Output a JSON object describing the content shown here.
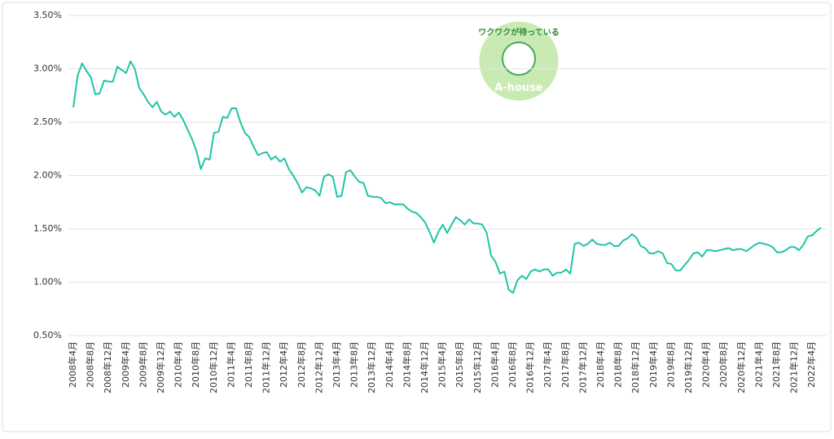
{
  "chart_data": {
    "type": "line",
    "categories": [
      "2008年4月",
      null,
      null,
      null,
      "2008年8月",
      null,
      null,
      null,
      "2008年12月",
      null,
      null,
      null,
      "2009年4月",
      null,
      null,
      null,
      "2009年8月",
      null,
      null,
      null,
      "2009年12月",
      null,
      null,
      null,
      "2010年4月",
      null,
      null,
      null,
      "2010年8月",
      null,
      null,
      null,
      "2010年12月",
      null,
      null,
      null,
      "2011年4月",
      null,
      null,
      null,
      "2011年8月",
      null,
      null,
      null,
      "2011年12月",
      null,
      null,
      null,
      "2012年4月",
      null,
      null,
      null,
      "2012年8月",
      null,
      null,
      null,
      "2012年12月",
      null,
      null,
      null,
      "2013年4月",
      null,
      null,
      null,
      "2013年8月",
      null,
      null,
      null,
      "2013年12月",
      null,
      null,
      null,
      "2014年4月",
      null,
      null,
      null,
      "2014年8月",
      null,
      null,
      null,
      "2014年12月",
      null,
      null,
      null,
      "2015年4月",
      null,
      null,
      null,
      "2015年8月",
      null,
      null,
      null,
      "2015年12月",
      null,
      null,
      null,
      "2016年4月",
      null,
      null,
      null,
      "2016年8月",
      null,
      null,
      null,
      "2016年12月",
      null,
      null,
      null,
      "2017年4月",
      null,
      null,
      null,
      "2017年8月",
      null,
      null,
      null,
      "2017年12月",
      null,
      null,
      null,
      "2018年4月",
      null,
      null,
      null,
      "2018年8月",
      null,
      null,
      null,
      "2018年12月",
      null,
      null,
      null,
      "2019年4月",
      null,
      null,
      null,
      "2019年8月",
      null,
      null,
      null,
      "2019年12月",
      null,
      null,
      null,
      "2020年4月",
      null,
      null,
      null,
      "2020年8月",
      null,
      null,
      null,
      "2020年12月",
      null,
      null,
      null,
      "2021年4月",
      null,
      null,
      null,
      "2021年8月",
      null,
      null,
      null,
      "2021年12月",
      null,
      null,
      null,
      "2022年4月",
      null,
      null
    ],
    "values": [
      2.64,
      2.94,
      3.05,
      2.98,
      2.92,
      2.76,
      2.77,
      2.89,
      2.88,
      2.88,
      3.02,
      2.99,
      2.96,
      3.07,
      3.0,
      2.82,
      2.76,
      2.69,
      2.64,
      2.69,
      2.6,
      2.57,
      2.6,
      2.55,
      2.59,
      2.52,
      2.43,
      2.34,
      2.23,
      2.06,
      2.16,
      2.15,
      2.4,
      2.41,
      2.55,
      2.54,
      2.63,
      2.63,
      2.5,
      2.4,
      2.36,
      2.27,
      2.19,
      2.21,
      2.22,
      2.15,
      2.18,
      2.13,
      2.16,
      2.06,
      2.0,
      1.93,
      1.84,
      1.89,
      1.88,
      1.86,
      1.81,
      1.99,
      2.01,
      1.99,
      1.8,
      1.81,
      2.03,
      2.05,
      1.99,
      1.94,
      1.93,
      1.81,
      1.8,
      1.8,
      1.79,
      1.74,
      1.75,
      1.73,
      1.73,
      1.73,
      1.69,
      1.66,
      1.65,
      1.61,
      1.56,
      1.47,
      1.37,
      1.47,
      1.54,
      1.46,
      1.54,
      1.61,
      1.58,
      1.54,
      1.59,
      1.55,
      1.55,
      1.54,
      1.46,
      1.25,
      1.19,
      1.08,
      1.1,
      0.93,
      0.9,
      1.02,
      1.06,
      1.03,
      1.1,
      1.12,
      1.1,
      1.12,
      1.12,
      1.06,
      1.09,
      1.09,
      1.12,
      1.08,
      1.36,
      1.37,
      1.34,
      1.36,
      1.4,
      1.36,
      1.35,
      1.35,
      1.37,
      1.34,
      1.34,
      1.39,
      1.41,
      1.45,
      1.42,
      1.34,
      1.32,
      1.27,
      1.27,
      1.29,
      1.27,
      1.18,
      1.17,
      1.11,
      1.11,
      1.16,
      1.21,
      1.27,
      1.28,
      1.24,
      1.3,
      1.3,
      1.29,
      1.3,
      1.31,
      1.32,
      1.3,
      1.31,
      1.31,
      1.29,
      1.32,
      1.35,
      1.37,
      1.36,
      1.35,
      1.33,
      1.28,
      1.28,
      1.3,
      1.33,
      1.33,
      1.3,
      1.35,
      1.43,
      1.44,
      1.48,
      1.51
    ],
    "color": "#22c3a6",
    "ylim": [
      0.5,
      3.5
    ],
    "yticks": [
      {
        "value": 0.5,
        "label": "0.50%"
      },
      {
        "value": 1.0,
        "label": "1.00%"
      },
      {
        "value": 1.5,
        "label": "1.50%"
      },
      {
        "value": 2.0,
        "label": "2.00%"
      },
      {
        "value": 2.5,
        "label": "2.50%"
      },
      {
        "value": 3.0,
        "label": "3.00%"
      },
      {
        "value": 3.5,
        "label": "3.50%"
      }
    ],
    "grid": true
  },
  "logo": {
    "tagline": "ワクワクが待っている",
    "name": "A-house"
  }
}
